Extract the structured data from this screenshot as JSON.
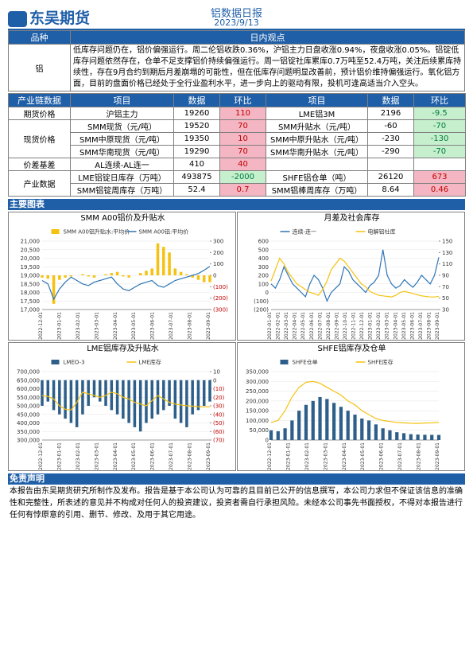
{
  "header": {
    "company": "东吴期货",
    "title": "铝数据日报",
    "date": "2023/9/13"
  },
  "view": {
    "headers": [
      "品种",
      "日内观点"
    ],
    "product": "铝",
    "text": "低库存问题仍在，铝价偏强运行。周二伦铝收跌0.36%，沪铝主力日盘收涨0.94%，夜盘收涨0.05%。铝锭低库存问题依然存在，仓单不足支撑铝价持续偏强运行。周一铝锭社库累库0.7万吨至52.4万吨，关注后续累库持续性，存在9月合约到期后月差崩塌的可能性，但在低库存问题明显改善前，预计铝价维持偏强运行。氧化铝方面，目前的盘面价格已经处于全行业盈利水平，进一步向上的驱动有限，投机可逢高适当介入空头。"
  },
  "table": {
    "headers": [
      "产业链数据",
      "项目",
      "数据",
      "环比",
      "项目",
      "数据",
      "环比"
    ],
    "groups": [
      {
        "name": "期货价格",
        "rows": [
          [
            "沪铝主力",
            19260,
            110,
            "LME铝3M",
            2196,
            -9.5
          ]
        ]
      },
      {
        "name": "现货价格",
        "rows": [
          [
            "SMM现货（元/吨）",
            19520,
            70,
            "SMM升贴水（元/吨）",
            -60,
            -70
          ],
          [
            "SMM中原现货（元/吨）",
            19350,
            10,
            "SMM中原升贴水（元/吨）",
            -230,
            -130
          ],
          [
            "SMM华南现货（元/吨）",
            19290,
            70,
            "SMM华南升贴水（元/吨）",
            -290,
            -70
          ]
        ]
      },
      {
        "name": "价差基差",
        "rows": [
          [
            "AL连续-AL连一",
            410,
            40
          ]
        ]
      },
      {
        "name": "产业数据",
        "rows": [
          [
            "LME铝锭日库存（万吨）",
            493875,
            -2000,
            "SHFE铝仓单（吨）",
            26120,
            673
          ],
          [
            "SMM铝锭周库存（万吨）",
            52.4,
            0.7,
            "SMM铝棒周库存（万吨）",
            8.64,
            0.46
          ]
        ]
      }
    ]
  },
  "charts_heading": "主要图表",
  "chart_data": [
    {
      "type": "combo",
      "title": "SMM A00铝价及升贴水",
      "ylim": [
        17000,
        21000
      ],
      "yticks": [
        {
          "value": 17000,
          "label": "17,000"
        },
        {
          "value": 17500,
          "label": "17,500"
        },
        {
          "value": 18000,
          "label": "18,000"
        },
        {
          "value": 18500,
          "label": "18,500"
        },
        {
          "value": 19000,
          "label": "19,000"
        },
        {
          "value": 19500,
          "label": "19,500"
        },
        {
          "value": 20000,
          "label": "20,000"
        },
        {
          "value": 20500,
          "label": "20,500"
        },
        {
          "value": 21000,
          "label": "21,000"
        }
      ],
      "y2lim": [
        -300,
        300
      ],
      "y2ticks": [
        {
          "value": -300,
          "label": "(300)"
        },
        {
          "value": -200,
          "label": "(200)"
        },
        {
          "value": -100,
          "label": "(100)"
        },
        0,
        100,
        200,
        300
      ],
      "xticks": [
        "2022-12-01",
        "2023-01-01",
        "2023-02-01",
        "2023-03-01",
        "2023-04-01",
        "2023-05-01",
        "2023-06-01",
        "2023-07-01",
        "2023-08-01",
        "2023-09-01"
      ],
      "series": [
        {
          "name": "SMM A00铝升贴水:平均价",
          "kind": "bar",
          "axis": "y2",
          "color": "#f5c211",
          "values": [
            -20,
            -30,
            -250,
            -40,
            -20,
            -10,
            0,
            10,
            -10,
            -20,
            0,
            10,
            20,
            30,
            -10,
            -20,
            0,
            20,
            40,
            60,
            280,
            250,
            200,
            60,
            30,
            10,
            -20,
            -40,
            -60,
            -60
          ]
        },
        {
          "name": "SMM A00铝:平均价",
          "kind": "line",
          "color": "#2e75b6",
          "values": [
            18700,
            18500,
            17600,
            18200,
            18600,
            18900,
            18700,
            18500,
            18400,
            18600,
            18700,
            18800,
            18900,
            18500,
            18200,
            18100,
            18300,
            18500,
            18600,
            18700,
            18400,
            18300,
            18500,
            18700,
            18800,
            18900,
            19000,
            19100,
            19300,
            19520
          ]
        }
      ]
    },
    {
      "type": "combo",
      "title": "月差及社会库存",
      "ylim": [
        -200,
        600
      ],
      "yticks": [
        {
          "value": -200,
          "label": "(200)"
        },
        {
          "value": -100,
          "label": "(100)"
        },
        0,
        100,
        200,
        300,
        400,
        500,
        600
      ],
      "y2lim": [
        30,
        150
      ],
      "y2ticks": [
        30,
        50,
        70,
        90,
        110,
        130,
        150
      ],
      "xticks": [
        "2022-01-01",
        "2022-02-01",
        "2022-03-01",
        "2022-04-01",
        "2022-05-01",
        "2022-06-01",
        "2022-07-01",
        "2022-08-01",
        "2022-09-01",
        "2022-10-01",
        "2022-11-01",
        "2022-12-01",
        "2023-01-01",
        "2023-02-01",
        "2023-03-01",
        "2023-04-01",
        "2023-05-01",
        "2023-06-01",
        "2023-07-01",
        "2023-08-01",
        "2023-09-01"
      ],
      "series": [
        {
          "name": "连续-连一",
          "kind": "line",
          "color": "#2e75b6",
          "values": [
            100,
            50,
            150,
            300,
            200,
            100,
            50,
            0,
            -50,
            100,
            200,
            150,
            50,
            -100,
            0,
            50,
            100,
            300,
            250,
            150,
            100,
            50,
            0,
            80,
            120,
            200,
            500,
            200,
            100,
            50,
            80,
            150,
            100,
            60,
            120,
            200,
            150,
            100,
            200,
            410
          ]
        },
        {
          "name": "电解铝社库",
          "kind": "line",
          "axis": "y2",
          "color": "#f5c211",
          "values": [
            80,
            100,
            120,
            110,
            95,
            85,
            75,
            70,
            65,
            60,
            58,
            55,
            65,
            80,
            100,
            110,
            120,
            115,
            105,
            95,
            85,
            75,
            70,
            62,
            58,
            55,
            54,
            53,
            52,
            55,
            60,
            62,
            60,
            58,
            56,
            54,
            53,
            52,
            52,
            53
          ]
        }
      ]
    },
    {
      "type": "combo",
      "title": "LME铝库存及升贴水",
      "ylim": [
        300000,
        700000
      ],
      "yticks": [
        {
          "value": 300000,
          "label": "300,000"
        },
        {
          "value": 350000,
          "label": "350,000"
        },
        {
          "value": 400000,
          "label": "400,000"
        },
        {
          "value": 450000,
          "label": "450,000"
        },
        {
          "value": 500000,
          "label": "500,000"
        },
        {
          "value": 550000,
          "label": "550,000"
        },
        {
          "value": 600000,
          "label": "600,000"
        },
        {
          "value": 650000,
          "label": "650,000"
        },
        {
          "value": 700000,
          "label": "700,000"
        }
      ],
      "y2lim": [
        -70,
        10
      ],
      "y2ticks": [
        {
          "value": -70,
          "label": "(70)"
        },
        {
          "value": -60,
          "label": "(60)"
        },
        {
          "value": -50,
          "label": "(50)"
        },
        {
          "value": -40,
          "label": "(40)"
        },
        {
          "value": -30,
          "label": "(30)"
        },
        {
          "value": -20,
          "label": "(20)"
        },
        {
          "value": -10,
          "label": "(10)"
        },
        0,
        10
      ],
      "xticks": [
        "2022-12-01",
        "2023-01-01",
        "2023-02-01",
        "2023-03-01",
        "2023-04-01",
        "2023-05-01",
        "2023-06-01",
        "2023-07-01",
        "2023-08-01",
        "2023-09-01"
      ],
      "series": [
        {
          "name": "LMEO-3",
          "kind": "bar",
          "axis": "y2",
          "color": "#2e5f8a",
          "values": [
            -30,
            -25,
            -35,
            -40,
            -45,
            -50,
            -55,
            -40,
            -30,
            -20,
            -25,
            -30,
            -35,
            -40,
            -45,
            -50,
            -55,
            -60,
            -50,
            -45,
            -40,
            -35,
            -30,
            -45,
            -50,
            -55,
            -40,
            -35,
            -30,
            -25
          ]
        },
        {
          "name": "LME库存",
          "kind": "line",
          "color": "#f5c211",
          "values": [
            560000,
            555000,
            540000,
            500000,
            480000,
            475000,
            520000,
            580000,
            570000,
            560000,
            550000,
            560000,
            580000,
            570000,
            550000,
            540000,
            520000,
            510000,
            500000,
            530000,
            560000,
            540000,
            520000,
            510000,
            505000,
            500000,
            498000,
            495000,
            494000,
            493875
          ]
        }
      ]
    },
    {
      "type": "combo",
      "title": "SHFE铝库存及仓单",
      "ylim": [
        0,
        350000
      ],
      "yticks": [
        0,
        {
          "value": 50000,
          "label": "50,000"
        },
        {
          "value": 100000,
          "label": "100,000"
        },
        {
          "value": 150000,
          "label": "150,000"
        },
        {
          "value": 200000,
          "label": "200,000"
        },
        {
          "value": 250000,
          "label": "250,000"
        },
        {
          "value": 300000,
          "label": "300,000"
        },
        {
          "value": 350000,
          "label": "350,000"
        }
      ],
      "xticks": [
        "2022-12-01",
        "2023-01-01",
        "2023-02-01",
        "2023-03-01",
        "2023-04-01",
        "2023-05-01",
        "2023-06-01",
        "2023-07-01",
        "2023-08-01",
        "2023-09-01"
      ],
      "series": [
        {
          "name": "SHFE仓单",
          "kind": "bar",
          "color": "#2e5f8a",
          "values": [
            50000,
            45000,
            60000,
            100000,
            150000,
            180000,
            200000,
            220000,
            210000,
            190000,
            170000,
            150000,
            130000,
            110000,
            100000,
            80000,
            60000,
            50000,
            40000,
            35000,
            30000,
            28000,
            27000,
            26500,
            26120
          ]
        },
        {
          "name": "SHFE库存",
          "kind": "line",
          "color": "#f5c211",
          "values": [
            90000,
            100000,
            150000,
            220000,
            270000,
            295000,
            300000,
            290000,
            270000,
            250000,
            230000,
            200000,
            180000,
            150000,
            130000,
            110000,
            100000,
            95000,
            90000,
            88000,
            86000,
            85000,
            87000,
            88000,
            90000
          ]
        }
      ]
    }
  ],
  "disclaimer": {
    "heading": "免责声明",
    "text": "本报告由东吴期货研究所制作及发布。报告是基于本公司认为可靠的且目前已公开的信息撰写，本公司力求但不保证该信息的准确性和完整性，所表述的意见并不构成对任何人的投资建议，投资者需自行承担风险。未经本公司事先书面授权，不得对本报告进行任何有悖原意的引用、删节、修改、及用于其它用途。"
  }
}
